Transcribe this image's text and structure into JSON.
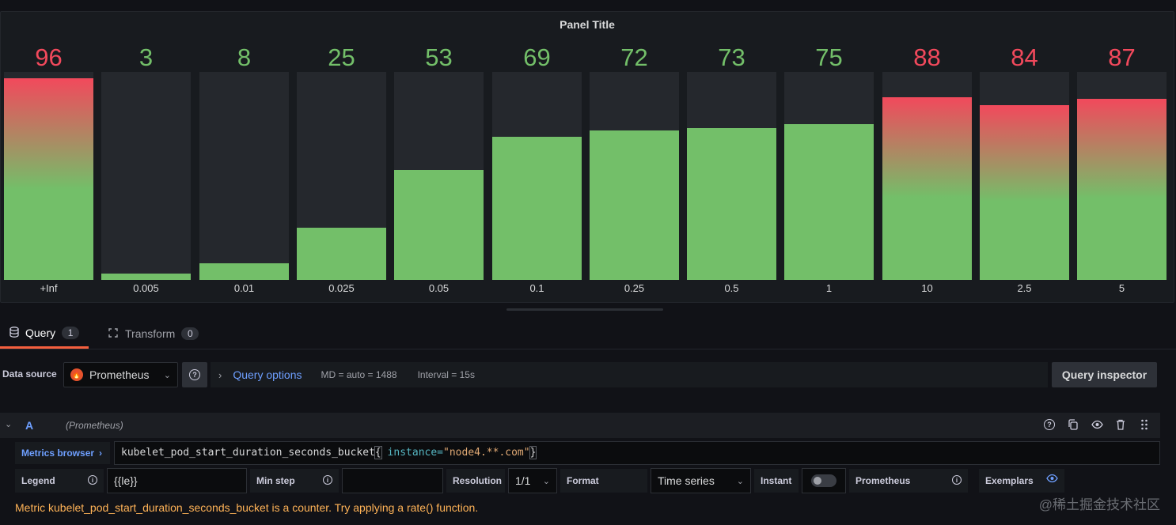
{
  "panel": {
    "title": "Panel Title",
    "max": 100
  },
  "chart_data": {
    "type": "bar",
    "categories": [
      "+Inf",
      "0.005",
      "0.01",
      "0.025",
      "0.05",
      "0.1",
      "0.25",
      "0.5",
      "1",
      "10",
      "2.5",
      "5"
    ],
    "values": [
      96,
      3,
      8,
      25,
      53,
      69,
      72,
      73,
      75,
      88,
      84,
      87
    ],
    "threshold_red_from": 80,
    "colors": {
      "green": "#73bf69",
      "red": "#f2495c"
    },
    "ylim": [
      0,
      100
    ]
  },
  "tabs": [
    {
      "label": "Query",
      "count": "1"
    },
    {
      "label": "Transform",
      "count": "0"
    }
  ],
  "datasource": {
    "label": "Data source",
    "selected": "Prometheus",
    "query_options": "Query options",
    "md": "MD = auto = 1488",
    "interval": "Interval = 15s",
    "inspector": "Query inspector"
  },
  "query": {
    "ref": "A",
    "ds": "(Prometheus)",
    "metrics_browser": "Metrics browser",
    "expr_metric": "kubelet_pod_start_duration_seconds_bucket",
    "expr_open": "{",
    "expr_label": " instance=",
    "expr_value": "\"node4.**.com\"",
    "expr_close": "}"
  },
  "options": {
    "legend_label": "Legend",
    "legend_value": "{{le}}",
    "minstep_label": "Min step",
    "minstep_value": "",
    "resolution_label": "Resolution",
    "resolution_value": "1/1",
    "format_label": "Format",
    "format_value": "Time series",
    "instant_label": "Instant",
    "instant_on": false,
    "prometheus_label": "Prometheus",
    "exemplars_label": "Exemplars"
  },
  "warning": "Metric kubelet_pod_start_duration_seconds_bucket is a counter. Try applying a rate() function.",
  "watermark": "@稀土掘金技术社区"
}
